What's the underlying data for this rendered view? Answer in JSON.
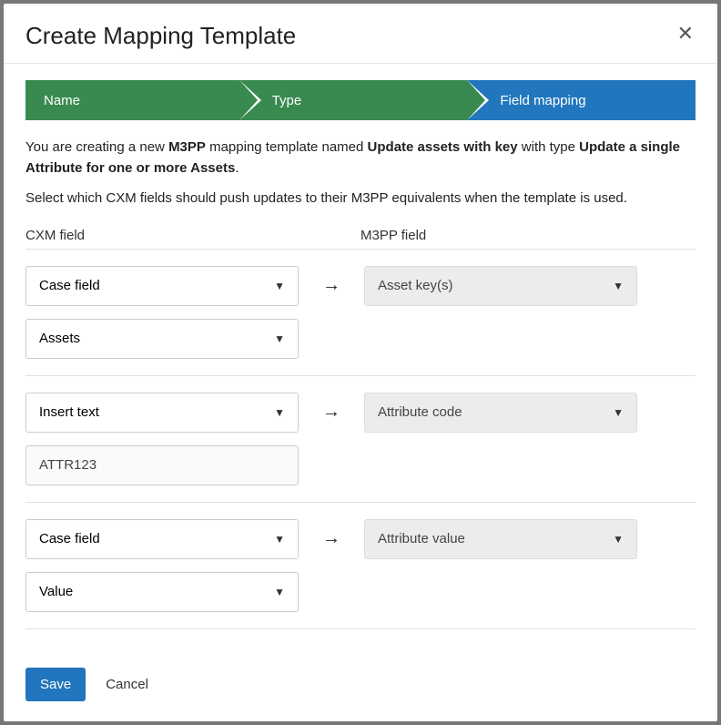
{
  "modal": {
    "title": "Create Mapping Template"
  },
  "stepper": {
    "steps": [
      {
        "label": "Name",
        "color": "green",
        "active": false
      },
      {
        "label": "Type",
        "color": "green",
        "active": false
      },
      {
        "label": "Field mapping",
        "color": "blue",
        "active": true
      }
    ],
    "colors": {
      "green": "#398a51",
      "blue": "#2176bd"
    }
  },
  "intro": {
    "prefix": "You are creating a new ",
    "system": "M3PP",
    "mid1": " mapping template named ",
    "template_name": "Update assets with key",
    "mid2": " with type ",
    "type_name": "Update a single Attribute for one or more Assets",
    "suffix": "."
  },
  "instruction": "Select which CXM fields should push updates to their M3PP equivalents when the template is used.",
  "columns": {
    "left": "CXM field",
    "right": "M3PP field"
  },
  "mappings": [
    {
      "cxm_type": "Case field",
      "cxm_value": "Assets",
      "cxm_value_kind": "select",
      "m3pp_field": "Asset key(s)"
    },
    {
      "cxm_type": "Insert text",
      "cxm_value": "ATTR123",
      "cxm_value_kind": "text",
      "m3pp_field": "Attribute code"
    },
    {
      "cxm_type": "Case field",
      "cxm_value": "Value",
      "cxm_value_kind": "select",
      "m3pp_field": "Attribute value"
    }
  ],
  "footer": {
    "save": "Save",
    "cancel": "Cancel"
  }
}
